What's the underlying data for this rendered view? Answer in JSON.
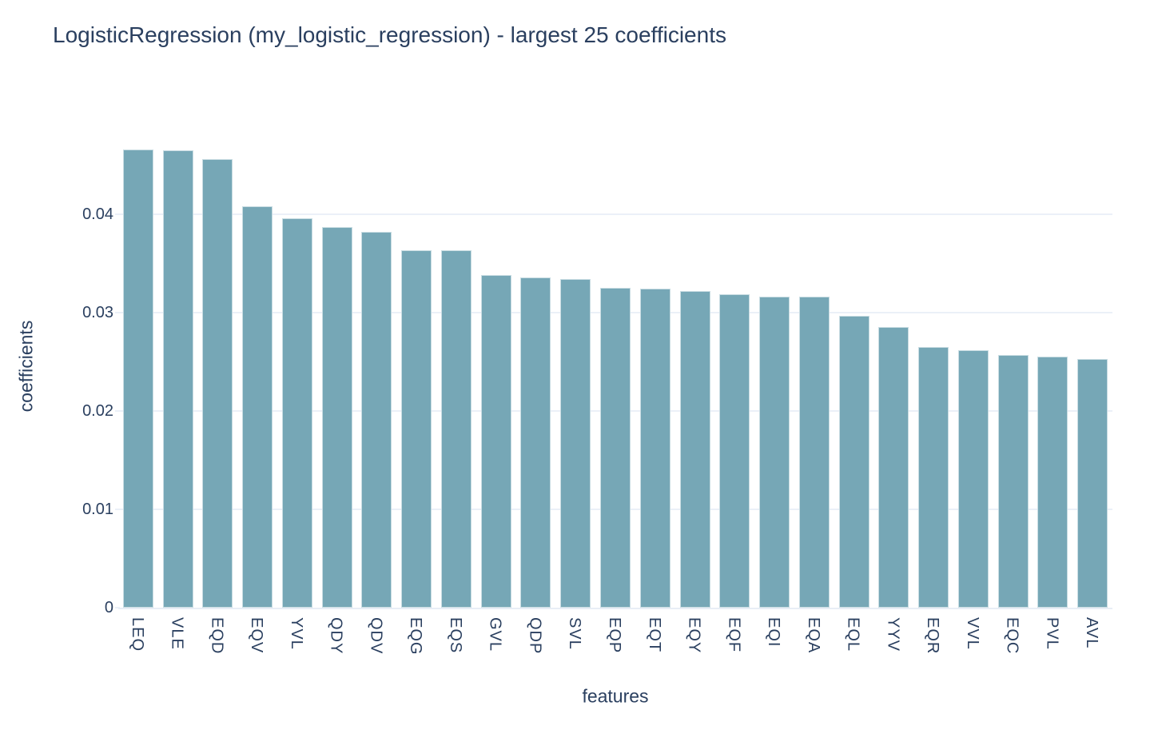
{
  "chart_data": {
    "type": "bar",
    "title": "LogisticRegression (my_logistic_regression) - largest 25 coefficients",
    "xlabel": "features",
    "ylabel": "coefficients",
    "categories": [
      "LEQ",
      "VLE",
      "EQD",
      "EQV",
      "YVL",
      "QDY",
      "QDV",
      "EQG",
      "EQS",
      "GVL",
      "QDP",
      "SVL",
      "EQP",
      "EQT",
      "EQY",
      "EQF",
      "EQI",
      "EQA",
      "EQL",
      "YYV",
      "EQR",
      "VVL",
      "EQC",
      "PVL",
      "AVL"
    ],
    "values": [
      0.0466,
      0.0465,
      0.0456,
      0.0408,
      0.0396,
      0.0387,
      0.0382,
      0.0363,
      0.0363,
      0.0338,
      0.0336,
      0.0334,
      0.0325,
      0.0324,
      0.0322,
      0.0319,
      0.0316,
      0.0316,
      0.0297,
      0.0285,
      0.0265,
      0.0262,
      0.0257,
      0.0255,
      0.0253
    ],
    "ylim": [
      0,
      0.0491
    ],
    "yticks": {
      "values": [
        0,
        0.01,
        0.02,
        0.03,
        0.04
      ],
      "labels": [
        "0",
        "0.01",
        "0.02",
        "0.03",
        "0.04"
      ]
    },
    "grid": true,
    "legend": false,
    "colors": {
      "bar": "#76a7b6",
      "grid": "#ebf0f8",
      "text": "#2a3f5f",
      "background": "#ffffff"
    }
  }
}
